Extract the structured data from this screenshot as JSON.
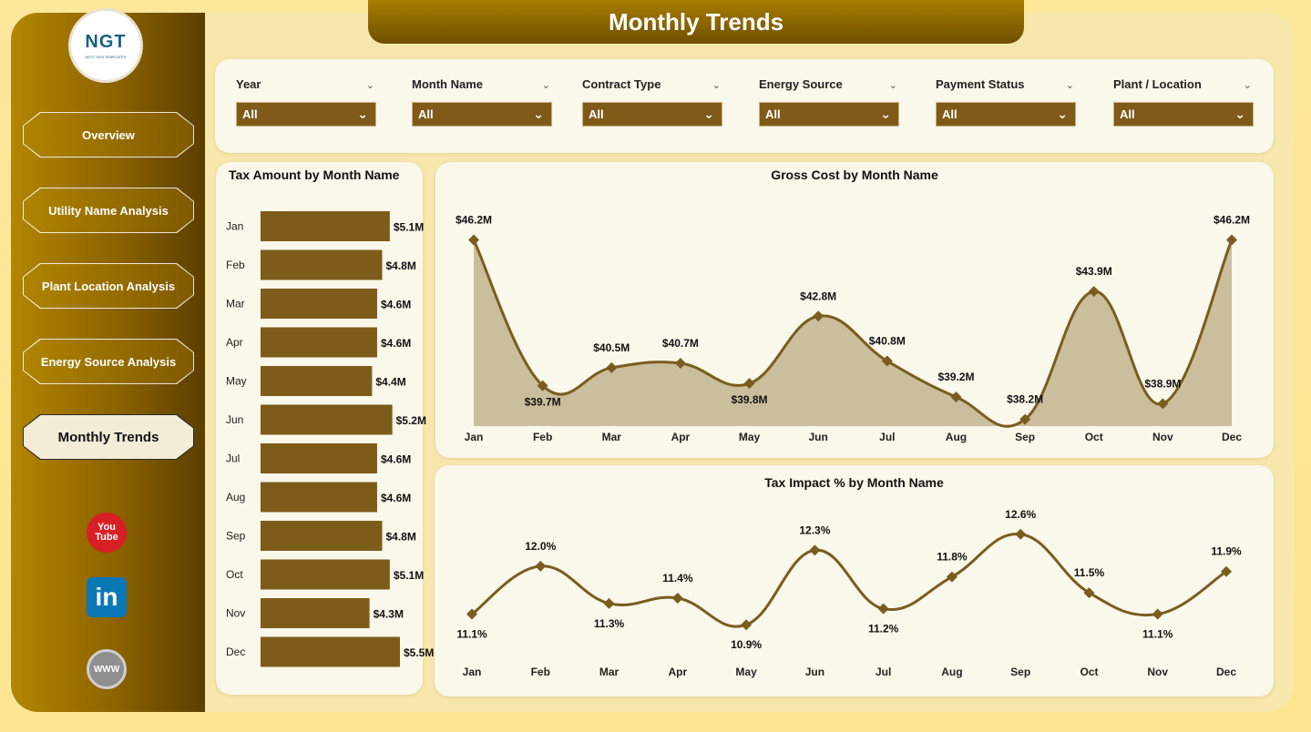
{
  "brand": {
    "logo_text": "NGT",
    "logo_sub": "NEXT GEN TEMPLATES"
  },
  "header": {
    "title": "Monthly Trends"
  },
  "sidebar": {
    "items": [
      {
        "label": "Overview",
        "active": false
      },
      {
        "label": "Utility Name Analysis",
        "active": false
      },
      {
        "label": "Plant Location Analysis",
        "active": false
      },
      {
        "label": "Energy Source Analysis",
        "active": false
      },
      {
        "label": "Monthly Trends",
        "active": true
      }
    ],
    "social": {
      "youtube": "You Tube",
      "linkedin": "in",
      "web": "WWW"
    }
  },
  "filters": [
    {
      "label": "Year",
      "value": "All"
    },
    {
      "label": "Month Name",
      "value": "All"
    },
    {
      "label": "Contract Type",
      "value": "All"
    },
    {
      "label": "Energy Source",
      "value": "All"
    },
    {
      "label": "Payment Status",
      "value": "All"
    },
    {
      "label": "Plant / Location",
      "value": "All"
    }
  ],
  "colors": {
    "accent": "#7f5a18",
    "line": "#7a5c1e",
    "area": "#c4b793",
    "bar": "#7d5c1a"
  },
  "chart_data": [
    {
      "type": "bar",
      "orientation": "horizontal",
      "title": "Tax Amount by Month Name",
      "categories": [
        "Jan",
        "Feb",
        "Mar",
        "Apr",
        "May",
        "Jun",
        "Jul",
        "Aug",
        "Sep",
        "Oct",
        "Nov",
        "Dec"
      ],
      "values": [
        5.1,
        4.8,
        4.6,
        4.6,
        4.4,
        5.2,
        4.6,
        4.6,
        4.8,
        5.1,
        4.3,
        5.5
      ],
      "labels": [
        "$5.1M",
        "$4.8M",
        "$4.6M",
        "$4.6M",
        "$4.4M",
        "$5.2M",
        "$4.6M",
        "$4.6M",
        "$4.8M",
        "$5.1M",
        "$4.3M",
        "$5.5M"
      ],
      "xlim": [
        0,
        6.4
      ]
    },
    {
      "type": "area",
      "title": "Gross Cost by Month Name",
      "categories": [
        "Jan",
        "Feb",
        "Mar",
        "Apr",
        "May",
        "Jun",
        "Jul",
        "Aug",
        "Sep",
        "Oct",
        "Nov",
        "Dec"
      ],
      "values": [
        46.2,
        39.7,
        40.5,
        40.7,
        39.8,
        42.8,
        40.8,
        39.2,
        38.2,
        43.9,
        38.9,
        46.2
      ],
      "labels": [
        "$46.2M",
        "$39.7M",
        "$40.5M",
        "$40.7M",
        "$39.8M",
        "$42.8M",
        "$40.8M",
        "$39.2M",
        "$38.2M",
        "$43.9M",
        "$38.9M",
        "$46.2M"
      ],
      "label_pos": [
        "above",
        "below",
        "above",
        "above",
        "below",
        "above",
        "above",
        "above",
        "above",
        "above",
        "above",
        "above"
      ],
      "ylim": [
        37.9,
        46.3
      ]
    },
    {
      "type": "line",
      "title": "Tax Impact % by Month Name",
      "categories": [
        "Jan",
        "Feb",
        "Mar",
        "Apr",
        "May",
        "Jun",
        "Jul",
        "Aug",
        "Sep",
        "Oct",
        "Nov",
        "Dec"
      ],
      "values": [
        11.1,
        12.0,
        11.3,
        11.4,
        10.9,
        12.3,
        11.2,
        11.8,
        12.6,
        11.5,
        11.1,
        11.9
      ],
      "labels": [
        "11.1%",
        "12.0%",
        "11.3%",
        "11.4%",
        "10.9%",
        "12.3%",
        "11.2%",
        "11.8%",
        "12.6%",
        "11.5%",
        "11.1%",
        "11.9%"
      ],
      "label_pos": [
        "below",
        "above",
        "below",
        "above",
        "below",
        "above",
        "below",
        "above",
        "above",
        "above",
        "below",
        "above"
      ],
      "ylim": [
        10.75,
        12.75
      ]
    }
  ]
}
